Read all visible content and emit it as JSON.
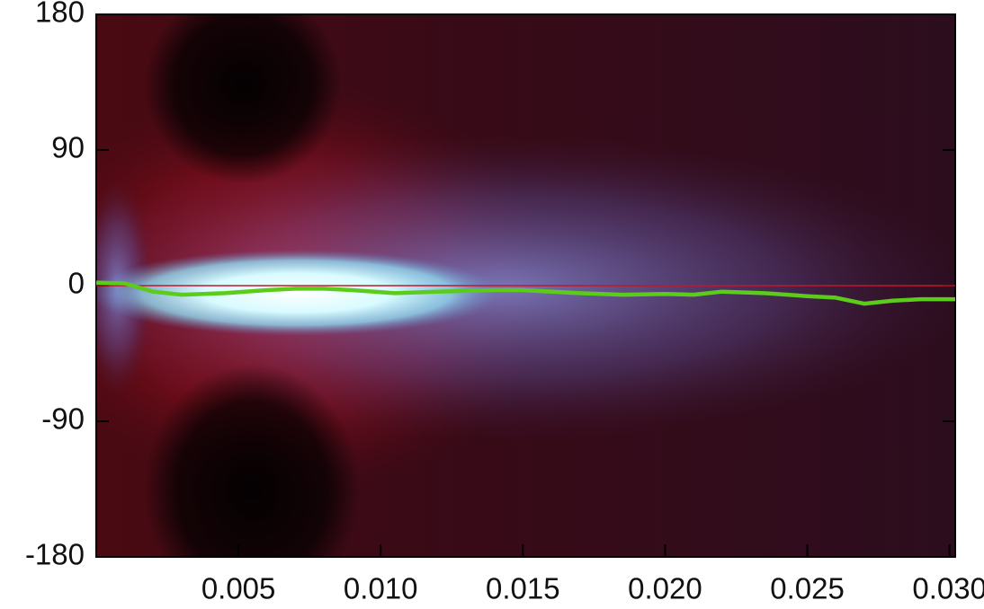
{
  "chart_data": {
    "type": "line",
    "xlim": [
      0,
      0.0302
    ],
    "ylim": [
      -180,
      180
    ],
    "xticks": [
      0.005,
      {
        "value": 0.01,
        "label": "0.010"
      },
      0.015,
      {
        "value": 0.02,
        "label": "0.020"
      },
      0.025,
      {
        "value": 0.03,
        "label": "0.030"
      }
    ],
    "yticks": [
      -180,
      -90,
      0,
      90,
      180
    ],
    "reference_line": {
      "y": 0,
      "color": "#c0182a"
    },
    "series": [
      {
        "color": "#5ccc1a",
        "x": [
          0,
          0.001,
          0.002,
          0.003,
          0.0045,
          0.006,
          0.007,
          0.008,
          0.009,
          0.0105,
          0.012,
          0.014,
          0.015,
          0.017,
          0.0185,
          0.02,
          0.021,
          0.022,
          0.0235,
          0.025,
          0.026,
          0.027,
          0.028,
          0.029,
          0.0302
        ],
        "values": [
          2,
          1.5,
          -4,
          -6,
          -5,
          -3,
          -2,
          -2,
          -3,
          -5,
          -4,
          -3,
          -3,
          -5,
          -6,
          -5.5,
          -6,
          -4,
          -5,
          -7,
          -8,
          -12,
          -10,
          -9,
          -9
        ]
      }
    ]
  }
}
